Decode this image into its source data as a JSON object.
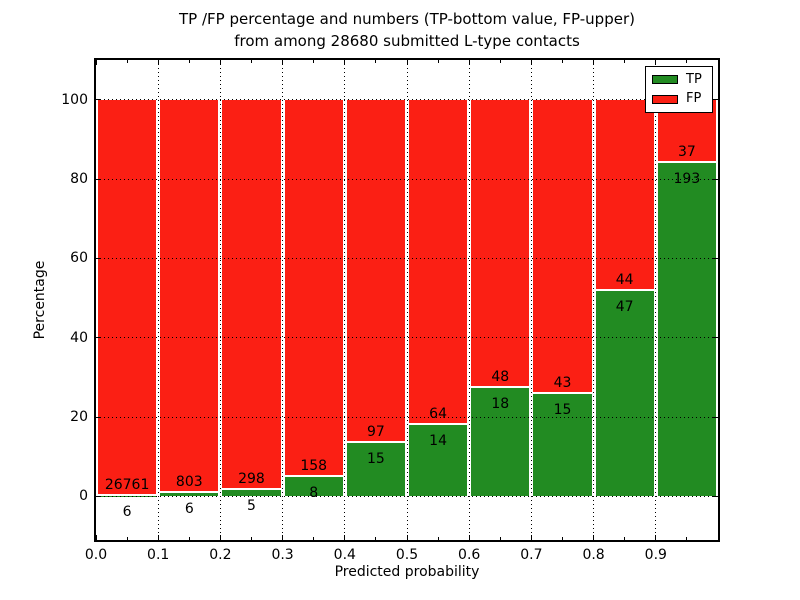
{
  "figure": {
    "title_line1": "TP /FP percentage and numbers (TP-bottom value, FP-upper)",
    "title_line2": "from among 28680 submitted L-type contacts",
    "xlabel": "Predicted probability",
    "ylabel": "Percentage"
  },
  "legend": {
    "entries": [
      {
        "label": "TP",
        "color": "#228b22"
      },
      {
        "label": "FP",
        "color": "#fb1f14"
      }
    ]
  },
  "chart_data": {
    "type": "bar",
    "subtype": "stacked-percentage",
    "title": "TP /FP percentage and numbers (TP-bottom value, FP-upper) from among 28680 submitted L-type contacts",
    "xlabel": "Predicted probability",
    "ylabel": "Percentage",
    "total_contacts": 28680,
    "xlim": [
      0.0,
      1.0
    ],
    "ylim": [
      -11,
      110
    ],
    "grid": true,
    "legend_position": "upper right",
    "x_tick_labels": [
      "0.0",
      "0.1",
      "0.2",
      "0.3",
      "0.4",
      "0.5",
      "0.6",
      "0.7",
      "0.8",
      "0.9"
    ],
    "y_tick_labels": [
      "0",
      "20",
      "40",
      "60",
      "80",
      "100"
    ],
    "y_gridlines": [
      0,
      20,
      40,
      60,
      80,
      100
    ],
    "colors": {
      "tp": "#228b22",
      "fp": "#fb1f14"
    },
    "categories": [
      "0.0-0.1",
      "0.1-0.2",
      "0.2-0.3",
      "0.3-0.4",
      "0.4-0.5",
      "0.5-0.6",
      "0.6-0.7",
      "0.7-0.8",
      "0.8-0.9",
      "0.9-1.0"
    ],
    "series": [
      {
        "name": "TP",
        "values": [
          6,
          6,
          5,
          8,
          15,
          14,
          18,
          15,
          47,
          193
        ]
      },
      {
        "name": "FP",
        "values": [
          26761,
          803,
          298,
          158,
          97,
          64,
          48,
          43,
          44,
          37
        ]
      }
    ],
    "tp_percent_heights": [
      0.02,
      0.74,
      1.65,
      4.82,
      13.39,
      17.95,
      27.27,
      25.86,
      51.65,
      83.91
    ]
  }
}
